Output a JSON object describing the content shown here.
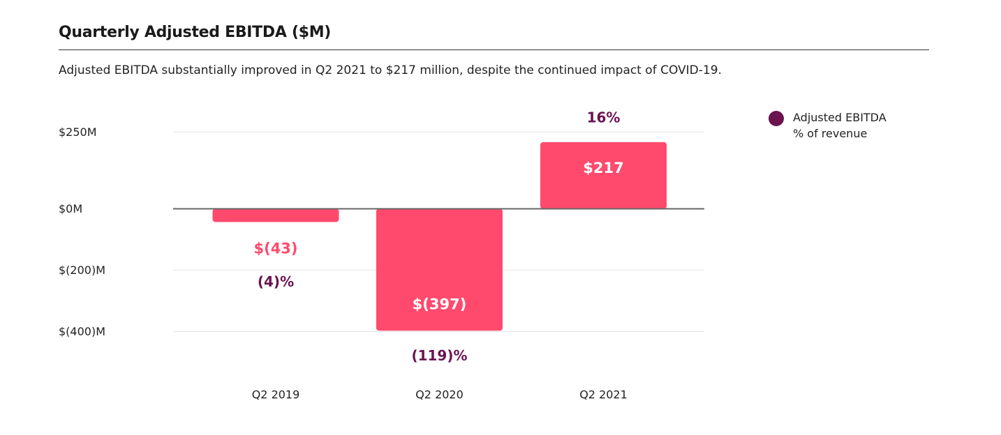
{
  "header": {
    "title": "Quarterly Adjusted EBITDA ($M)",
    "subtitle": "Adjusted EBITDA substantially improved in Q2 2021 to $217 million, despite the continued impact of COVID-19."
  },
  "legend": {
    "line1": "Adjusted EBITDA",
    "line2": "% of revenue"
  },
  "colors": {
    "bar": "#ff4a6e",
    "negative_label": "#ff4a6e",
    "bar_label": "#ffffff",
    "percent": "#6b1350",
    "grid": "#e4e4e4",
    "zero_line": "#666666",
    "text": "#222222"
  },
  "chart_data": {
    "type": "bar",
    "title": "Quarterly Adjusted EBITDA ($M)",
    "xlabel": "",
    "ylabel": "",
    "ylim": [
      -400,
      250
    ],
    "y_ticks": [
      250,
      0,
      -200,
      -400
    ],
    "y_tick_labels": [
      "$250M",
      "$0M",
      "$(200)M",
      "$(400)M"
    ],
    "grid": true,
    "legend_position": "top-right",
    "categories": [
      "Q2 2019",
      "Q2 2020",
      "Q2 2021"
    ],
    "series": [
      {
        "name": "Adjusted EBITDA",
        "values": [
          -43,
          -397,
          217
        ],
        "labels": [
          "$(43)",
          "$(397)",
          "$217"
        ]
      },
      {
        "name": "% of revenue",
        "values": [
          -4,
          -119,
          16
        ],
        "labels": [
          "(4)%",
          "(119)%",
          "16%"
        ]
      }
    ]
  }
}
